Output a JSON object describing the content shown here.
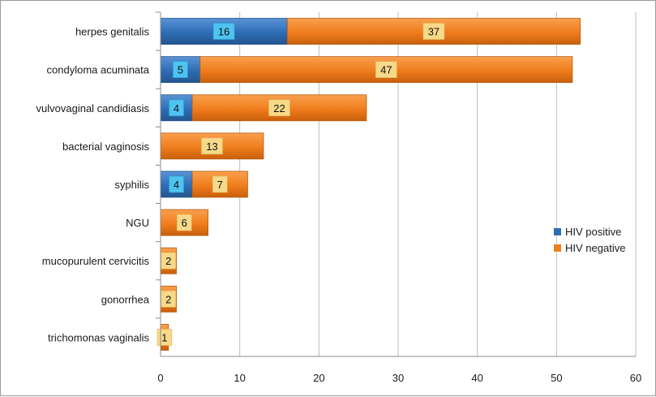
{
  "chart_data": {
    "type": "bar",
    "orientation": "horizontal",
    "stacked": true,
    "categories": [
      "herpes genitalis",
      "condyloma acuminata",
      "vulvovaginal candidiasis",
      "bacterial vaginosis",
      "syphilis",
      "NGU",
      "mucopurulent cervicitis",
      "gonorrhea",
      "trichomonas vaginalis"
    ],
    "series": [
      {
        "name": "HIV positive",
        "color": "#2e6db5",
        "label_bg": "#4fc3f0",
        "values": [
          16,
          5,
          4,
          0,
          4,
          0,
          0,
          0,
          0
        ]
      },
      {
        "name": "HIV negative",
        "color": "#f07d1c",
        "label_bg": "#f7d98a",
        "values": [
          37,
          47,
          22,
          13,
          7,
          6,
          2,
          2,
          1
        ]
      }
    ],
    "xlim": [
      0,
      60
    ],
    "xticks": [
      0,
      10,
      20,
      30,
      40,
      50,
      60
    ],
    "grid": true,
    "legend_position": "right"
  }
}
